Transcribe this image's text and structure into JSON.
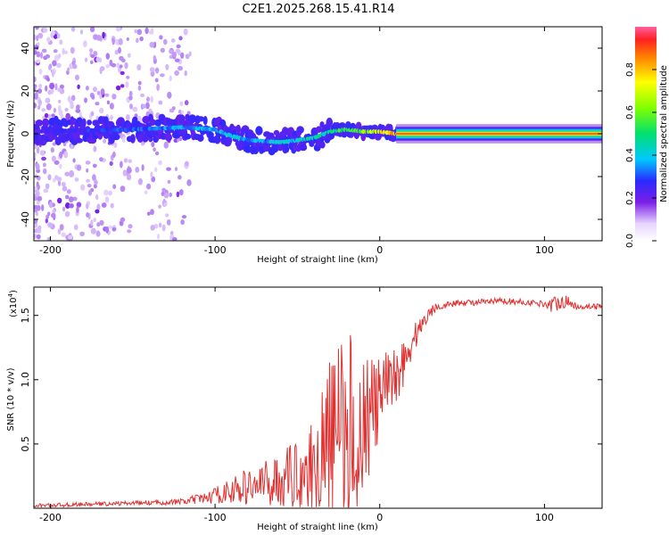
{
  "chart_data": [
    {
      "type": "heatmap",
      "title": "C2E1.2025.268.15.41.R14",
      "xlabel": "Height of straight line (km)",
      "ylabel": "Frequency (Hz)",
      "xlim": [
        -210,
        135
      ],
      "ylim": [
        -50,
        50
      ],
      "x_ticks": [
        -200,
        -100,
        0,
        100
      ],
      "x_tick_labels": [
        "-200",
        "-100",
        "0",
        "100"
      ],
      "y_ticks": [
        -40,
        -20,
        0,
        20,
        40
      ],
      "y_tick_labels": [
        "-40",
        "-20",
        "0",
        "20",
        "40"
      ],
      "colorbar": {
        "label": "Normalized spectral amplitude",
        "range": [
          0,
          1
        ],
        "ticks": [
          0.0,
          0.2,
          0.4,
          0.6,
          0.8
        ],
        "tick_labels": [
          "0.0",
          "0.2",
          "0.4",
          "0.6",
          "0.8"
        ]
      },
      "ridge": {
        "x": [
          -210,
          -180,
          -150,
          -120,
          -100,
          -90,
          -80,
          -60,
          -40,
          -30,
          -20,
          -10,
          0,
          10,
          50,
          100,
          135
        ],
        "y": [
          1,
          1.5,
          2,
          3,
          2,
          -1,
          -3,
          -4,
          -2,
          1,
          2,
          1,
          1,
          0,
          0,
          0,
          0
        ],
        "amplitude": [
          0.25,
          0.3,
          0.35,
          0.4,
          0.42,
          0.45,
          0.4,
          0.45,
          0.5,
          0.55,
          0.6,
          0.7,
          0.85,
          0.95,
          1.0,
          1.0,
          1.0
        ]
      }
    },
    {
      "type": "line",
      "xlabel": "Height of straight line (km)",
      "ylabel": "SNR (10 * v/v)",
      "y_multiplier": "(x10",
      "y_multiplier_exp": "4",
      "y_multiplier_close": ")",
      "xlim": [
        -210,
        135
      ],
      "ylim": [
        0,
        1.72
      ],
      "x_ticks": [
        -200,
        -100,
        0,
        100
      ],
      "x_tick_labels": [
        "-200",
        "-100",
        "0",
        "100"
      ],
      "y_ticks": [
        0.5,
        1.0,
        1.5
      ],
      "y_tick_labels": [
        "0.5",
        "1.0",
        "1.5"
      ],
      "color": "#e03030",
      "series": [
        {
          "name": "SNR",
          "x": [
            -210,
            -180,
            -150,
            -120,
            -105,
            -95,
            -85,
            -75,
            -65,
            -55,
            -45,
            -40,
            -35,
            -30,
            -25,
            -22,
            -18,
            -15,
            -12,
            -8,
            -5,
            -2,
            0,
            5,
            10,
            15,
            20,
            25,
            30,
            35,
            40,
            50,
            60,
            70,
            80,
            90,
            100,
            105,
            110,
            120,
            135
          ],
          "y": [
            0.02,
            0.03,
            0.04,
            0.05,
            0.08,
            0.12,
            0.15,
            0.18,
            0.2,
            0.25,
            0.3,
            0.35,
            0.4,
            0.45,
            0.5,
            0.55,
            0.6,
            0.65,
            0.68,
            0.7,
            0.75,
            0.8,
            0.85,
            0.95,
            1.05,
            1.15,
            1.3,
            1.42,
            1.52,
            1.57,
            1.58,
            1.6,
            1.6,
            1.61,
            1.61,
            1.6,
            1.59,
            1.58,
            1.62,
            1.57,
            1.57
          ],
          "noise": [
            0.01,
            0.01,
            0.01,
            0.015,
            0.03,
            0.05,
            0.08,
            0.1,
            0.12,
            0.15,
            0.2,
            0.25,
            0.35,
            0.45,
            0.5,
            0.55,
            0.5,
            0.45,
            0.4,
            0.35,
            0.3,
            0.25,
            0.2,
            0.18,
            0.15,
            0.12,
            0.08,
            0.05,
            0.03,
            0.02,
            0.015,
            0.015,
            0.015,
            0.015,
            0.015,
            0.015,
            0.015,
            0.04,
            0.04,
            0.015,
            0.015
          ]
        }
      ]
    }
  ]
}
